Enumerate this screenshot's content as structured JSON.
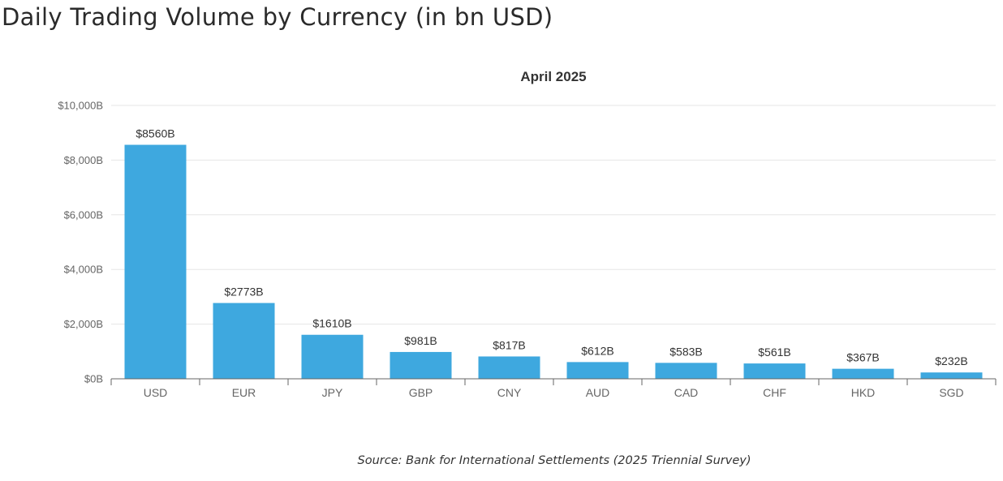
{
  "header": {
    "title": "Daily Trading Volume by Currency (in bn USD)"
  },
  "chart_data": {
    "type": "bar",
    "title": "April 2025",
    "xlabel": "",
    "ylabel": "",
    "categories": [
      "USD",
      "EUR",
      "JPY",
      "GBP",
      "CNY",
      "AUD",
      "CAD",
      "CHF",
      "HKD",
      "SGD"
    ],
    "values": [
      8560,
      2773,
      1610,
      981,
      817,
      612,
      583,
      561,
      367,
      232
    ],
    "data_labels": [
      "$8560B",
      "$2773B",
      "$1610B",
      "$981B",
      "$817B",
      "$612B",
      "$583B",
      "$561B",
      "$367B",
      "$232B"
    ],
    "ylim": [
      0,
      10000
    ],
    "yticks": [
      0,
      2000,
      4000,
      6000,
      8000,
      10000
    ],
    "ytick_labels": [
      "$0B",
      "$2,000B",
      "$4,000B",
      "$6,000B",
      "$8,000B",
      "$10,000B"
    ],
    "grid": true,
    "legend": "none",
    "bar_color": "#3ea8df"
  },
  "footer": {
    "source": "Source: Bank for International Settlements (2025 Triennial Survey)"
  }
}
